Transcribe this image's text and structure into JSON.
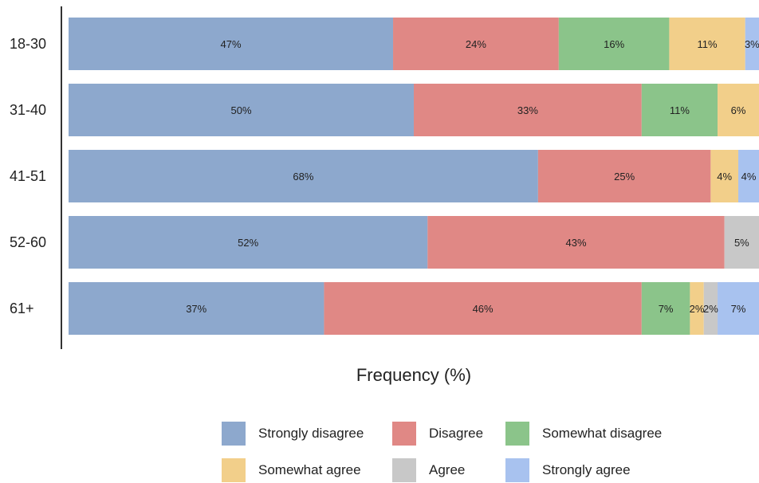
{
  "chart_data": {
    "type": "bar",
    "orientation": "horizontal",
    "stacked": true,
    "title": "",
    "xlabel": "Frequency (%)",
    "ylabel": "",
    "xlim": [
      0,
      100
    ],
    "categories": [
      "18-30",
      "31-40",
      "41-51",
      "52-60",
      "61+"
    ],
    "series": [
      {
        "name": "Strongly disagree",
        "color": "#8da8cd",
        "values": [
          47,
          50,
          68,
          52,
          37
        ]
      },
      {
        "name": "Disagree",
        "color": "#e08885",
        "values": [
          24,
          33,
          25,
          43,
          46
        ]
      },
      {
        "name": "Somewhat disagree",
        "color": "#8bc48a",
        "values": [
          16,
          11,
          0,
          0,
          7
        ]
      },
      {
        "name": "Somewhat agree",
        "color": "#f2cf8a",
        "values": [
          11,
          6,
          4,
          0,
          2
        ]
      },
      {
        "name": "Agree",
        "color": "#c8c8c8",
        "values": [
          0,
          0,
          0,
          5,
          2
        ]
      },
      {
        "name": "Strongly agree",
        "color": "#a8c2ef",
        "values": [
          3,
          0,
          4,
          0,
          7
        ]
      }
    ],
    "value_suffix": "%",
    "legend_position": "bottom",
    "grid": false
  }
}
